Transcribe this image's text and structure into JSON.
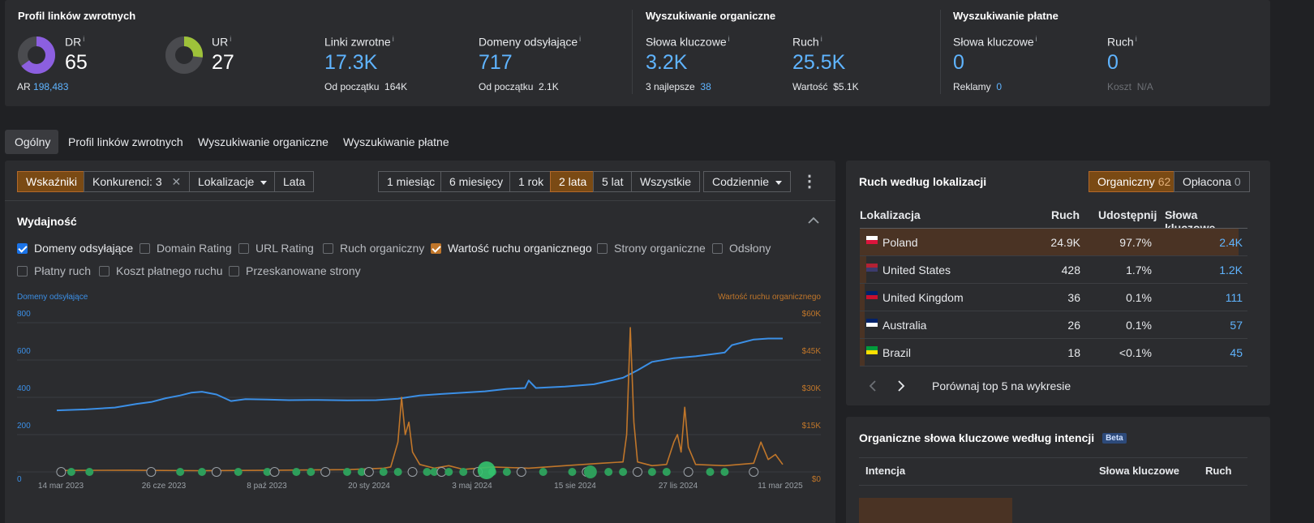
{
  "backlinks_profile": {
    "title": "Profil linków zwrotnych",
    "dr": {
      "label": "DR",
      "value": "65",
      "fill": 0.65
    },
    "ur": {
      "label": "UR",
      "value": "27",
      "fill": 0.27
    },
    "ar": {
      "label": "AR",
      "value": "198,483"
    },
    "backlinks": {
      "label": "Linki zwrotne",
      "value": "17.3K",
      "sub_label": "Od początku",
      "sub_value": "164K"
    },
    "ref_domains": {
      "label": "Domeny odsyłające",
      "value": "717",
      "sub_label": "Od początku",
      "sub_value": "2.1K"
    },
    "info": "i"
  },
  "organic_search": {
    "title": "Wyszukiwanie organiczne",
    "keywords": {
      "label": "Słowa kluczowe",
      "value": "3.2K",
      "sub_label": "3 najlepsze",
      "sub_value": "38"
    },
    "traffic": {
      "label": "Ruch",
      "value": "25.5K",
      "sub_label": "Wartość",
      "sub_value": "$5.1K"
    }
  },
  "paid_search": {
    "title": "Wyszukiwanie płatne",
    "keywords": {
      "label": "Słowa kluczowe",
      "value": "0",
      "sub_label": "Reklamy",
      "sub_value": "0"
    },
    "traffic": {
      "label": "Ruch",
      "value": "0",
      "sub_label": "Koszt",
      "sub_value": "N/A"
    }
  },
  "tabs": [
    "Ogólny",
    "Profil linków zwrotnych",
    "Wyszukiwanie organiczne",
    "Wyszukiwanie płatne"
  ],
  "toolbar": {
    "indicators": "Wskaźniki",
    "competitors": "Konkurenci: 3",
    "competitors_close": "✕",
    "locations": "Lokalizacje",
    "years": "Lata",
    "ranges": [
      "1 miesiąc",
      "6 miesięcy",
      "1 rok",
      "2 lata",
      "5 lat",
      "Wszystkie"
    ],
    "active_range": "2 lata",
    "interval": "Codziennie",
    "more": "⋮"
  },
  "performance": {
    "title": "Wydajność",
    "options": [
      {
        "label": "Domeny odsyłające",
        "checked": true
      },
      {
        "label": "Domain Rating",
        "checked": false
      },
      {
        "label": "URL Rating",
        "checked": false
      },
      {
        "label": "Ruch organiczny",
        "checked": false
      },
      {
        "label": "Wartość ruchu organicznego",
        "checked": true
      },
      {
        "label": "Strony organiczne",
        "checked": false
      },
      {
        "label": "Odsłony",
        "checked": false
      },
      {
        "label": "Płatny ruch",
        "checked": false
      },
      {
        "label": "Koszt płatnego ruchu",
        "checked": false
      },
      {
        "label": "Przeskanowane strony",
        "checked": false
      }
    ]
  },
  "chart_data": {
    "type": "line",
    "left_axis_label": "Domeny odsyłające",
    "right_axis_label": "Wartość ruchu organicznego",
    "left_ticks": [
      "0",
      "200",
      "400",
      "600",
      "800"
    ],
    "right_ticks": [
      "$0",
      "$15K",
      "$30K",
      "$45K",
      "$60K"
    ],
    "x_ticks": [
      "14 mar 2023",
      "26 cze 2023",
      "8 paź 2023",
      "20 sty 2024",
      "3 maj 2024",
      "15 sie 2024",
      "27 lis 2024",
      "11 mar 2025"
    ],
    "ylim_left": [
      0,
      800
    ],
    "ylim_right": [
      0,
      60000
    ],
    "grid": true,
    "series": [
      {
        "name": "Domeny odsyłające",
        "color": "#3b8fe6",
        "axis": "left",
        "points": [
          [
            0,
            330
          ],
          [
            0.04,
            335
          ],
          [
            0.08,
            345
          ],
          [
            0.11,
            365
          ],
          [
            0.13,
            375
          ],
          [
            0.15,
            395
          ],
          [
            0.17,
            410
          ],
          [
            0.185,
            425
          ],
          [
            0.2,
            430
          ],
          [
            0.22,
            415
          ],
          [
            0.24,
            380
          ],
          [
            0.26,
            390
          ],
          [
            0.29,
            388
          ],
          [
            0.32,
            385
          ],
          [
            0.36,
            386
          ],
          [
            0.4,
            384
          ],
          [
            0.44,
            385
          ],
          [
            0.47,
            392
          ],
          [
            0.5,
            410
          ],
          [
            0.53,
            418
          ],
          [
            0.56,
            425
          ],
          [
            0.59,
            432
          ],
          [
            0.62,
            445
          ],
          [
            0.645,
            450
          ],
          [
            0.65,
            490
          ],
          [
            0.66,
            450
          ],
          [
            0.7,
            458
          ],
          [
            0.74,
            470
          ],
          [
            0.78,
            505
          ],
          [
            0.8,
            545
          ],
          [
            0.82,
            590
          ],
          [
            0.85,
            610
          ],
          [
            0.88,
            620
          ],
          [
            0.9,
            630
          ],
          [
            0.92,
            640
          ],
          [
            0.93,
            680
          ],
          [
            0.96,
            710
          ],
          [
            0.98,
            715
          ],
          [
            1,
            715
          ]
        ]
      },
      {
        "name": "Wartość ruchu organicznego",
        "color": "#c0762a",
        "axis": "right",
        "points": [
          [
            0,
            600
          ],
          [
            0.1,
            700
          ],
          [
            0.2,
            500
          ],
          [
            0.3,
            700
          ],
          [
            0.4,
            900
          ],
          [
            0.45,
            1500
          ],
          [
            0.46,
            2000
          ],
          [
            0.47,
            12000
          ],
          [
            0.475,
            30000
          ],
          [
            0.48,
            15000
          ],
          [
            0.485,
            20000
          ],
          [
            0.49,
            8000
          ],
          [
            0.5,
            3000
          ],
          [
            0.52,
            1500
          ],
          [
            0.54,
            2500
          ],
          [
            0.56,
            1000
          ],
          [
            0.6,
            2000
          ],
          [
            0.65,
            1500
          ],
          [
            0.7,
            2500
          ],
          [
            0.75,
            3500
          ],
          [
            0.78,
            4000
          ],
          [
            0.785,
            15000
          ],
          [
            0.79,
            58000
          ],
          [
            0.795,
            20000
          ],
          [
            0.8,
            4000
          ],
          [
            0.82,
            2500
          ],
          [
            0.84,
            3000
          ],
          [
            0.85,
            12000
          ],
          [
            0.855,
            15000
          ],
          [
            0.86,
            8000
          ],
          [
            0.865,
            26000
          ],
          [
            0.87,
            10000
          ],
          [
            0.88,
            3000
          ],
          [
            0.92,
            2500
          ],
          [
            0.96,
            3500
          ],
          [
            0.97,
            12000
          ],
          [
            0.98,
            5000
          ],
          [
            0.99,
            7000
          ],
          [
            1,
            3000
          ]
        ]
      }
    ]
  },
  "locations_card": {
    "title": "Ruch według lokalizacji",
    "toggle_organic": "Organiczny",
    "toggle_organic_count": "62",
    "toggle_paid": "Opłacona",
    "toggle_paid_count": "0",
    "columns": [
      "Lokalizacja",
      "Ruch",
      "Udostępnij",
      "Słowa kluczowe"
    ],
    "rows": [
      {
        "country": "Poland",
        "traffic": "24.9K",
        "share": "97.7%",
        "keywords": "2.4K",
        "share_fill": 0.977
      },
      {
        "country": "United States",
        "traffic": "428",
        "share": "1.7%",
        "keywords": "1.2K",
        "share_fill": 0.017
      },
      {
        "country": "United Kingdom",
        "traffic": "36",
        "share": "0.1%",
        "keywords": "111",
        "share_fill": 0.001
      },
      {
        "country": "Australia",
        "traffic": "26",
        "share": "0.1%",
        "keywords": "57",
        "share_fill": 0.001
      },
      {
        "country": "Brazil",
        "traffic": "18",
        "share": "<0.1%",
        "keywords": "45",
        "share_fill": 0.0005
      }
    ],
    "compare": "Porównaj top 5 na wykresie"
  },
  "intent_card": {
    "title": "Organiczne słowa kluczowe według intencji",
    "badge": "Beta",
    "columns": [
      "Intencja",
      "Słowa kluczowe",
      "Ruch"
    ]
  }
}
